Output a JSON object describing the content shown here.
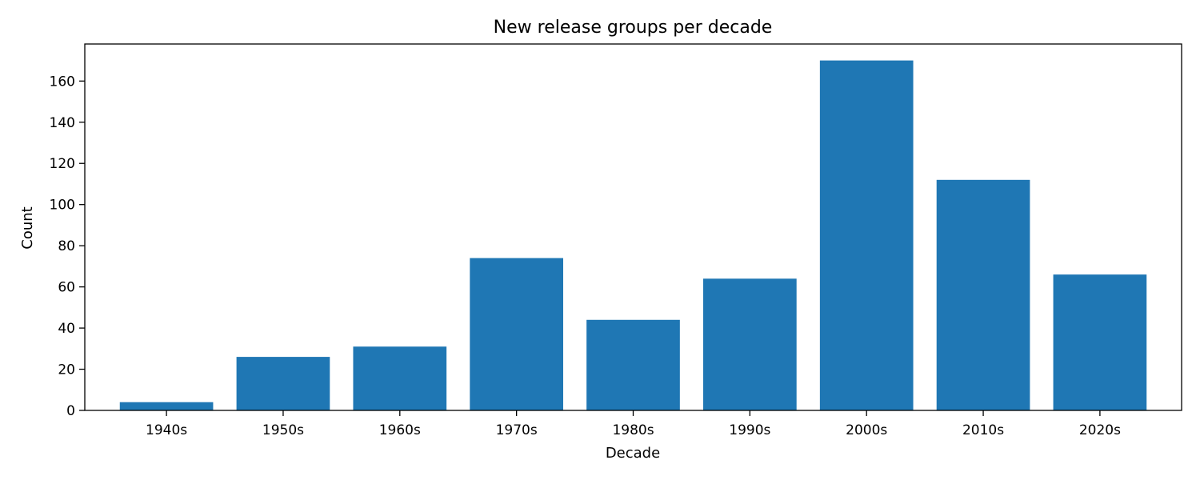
{
  "chart_data": {
    "type": "bar",
    "title": "New release groups per decade",
    "xlabel": "Decade",
    "ylabel": "Count",
    "categories": [
      "1940s",
      "1950s",
      "1960s",
      "1970s",
      "1980s",
      "1990s",
      "2000s",
      "2010s",
      "2020s"
    ],
    "values": [
      4,
      26,
      31,
      74,
      44,
      64,
      170,
      112,
      66
    ],
    "ylim": [
      0,
      178
    ],
    "yticks": [
      0,
      20,
      40,
      60,
      80,
      100,
      120,
      140,
      160
    ],
    "grid": false,
    "bar_color": "#1f77b4"
  }
}
